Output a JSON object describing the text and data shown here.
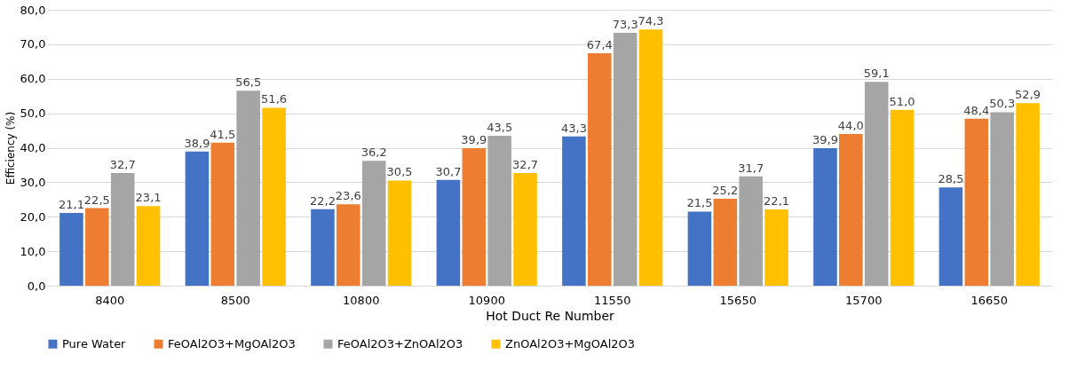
{
  "chart_data": {
    "type": "bar",
    "xlabel": "Hot Duct Re Number",
    "ylabel": "Efficiency (%)",
    "categories": [
      "8400",
      "8500",
      "10800",
      "10900",
      "11550",
      "15650",
      "15700",
      "16650"
    ],
    "series": [
      {
        "name": "Pure Water",
        "color": "#4472c4",
        "values": [
          21.1,
          38.9,
          22.2,
          30.7,
          43.3,
          21.5,
          39.9,
          28.5
        ],
        "value_labels": [
          "21,1",
          "38,9",
          "22,2",
          "30,7",
          "43,3",
          "21,5",
          "39,9",
          "28,5"
        ]
      },
      {
        "name": "FeOAl2O3+MgOAl2O3",
        "color": "#ed7d31",
        "values": [
          22.5,
          41.5,
          23.6,
          39.9,
          67.4,
          25.2,
          44.0,
          48.4
        ],
        "value_labels": [
          "22,5",
          "41,5",
          "23,6",
          "39,9",
          "67,4",
          "25,2",
          "44,0",
          "48,4"
        ]
      },
      {
        "name": "FeOAl2O3+ZnOAl2O3",
        "color": "#a5a5a5",
        "values": [
          32.7,
          56.5,
          36.2,
          43.5,
          73.3,
          31.7,
          59.1,
          50.3
        ],
        "value_labels": [
          "32,7",
          "56,5",
          "36,2",
          "43,5",
          "73,3",
          "31,7",
          "59,1",
          "50,3"
        ]
      },
      {
        "name": "ZnOAl2O3+MgOAl2O3",
        "color": "#ffc000",
        "values": [
          23.1,
          51.6,
          30.5,
          32.7,
          74.3,
          22.1,
          51.0,
          52.9
        ],
        "value_labels": [
          "23,1",
          "51,6",
          "30,5",
          "32,7",
          "74,3",
          "22,1",
          "51,0",
          "52,9"
        ]
      }
    ],
    "ylim": [
      0,
      80
    ],
    "yticks": [
      {
        "value": 0,
        "label": "0,0"
      },
      {
        "value": 10,
        "label": "10,0"
      },
      {
        "value": 20,
        "label": "20,0"
      },
      {
        "value": 30,
        "label": "30,0"
      },
      {
        "value": 40,
        "label": "40,0"
      },
      {
        "value": 50,
        "label": "50,0"
      },
      {
        "value": 60,
        "label": "60,0"
      },
      {
        "value": 70,
        "label": "70,0"
      },
      {
        "value": 80,
        "label": "80,0"
      }
    ],
    "grid": "y",
    "legend": "bottom"
  }
}
